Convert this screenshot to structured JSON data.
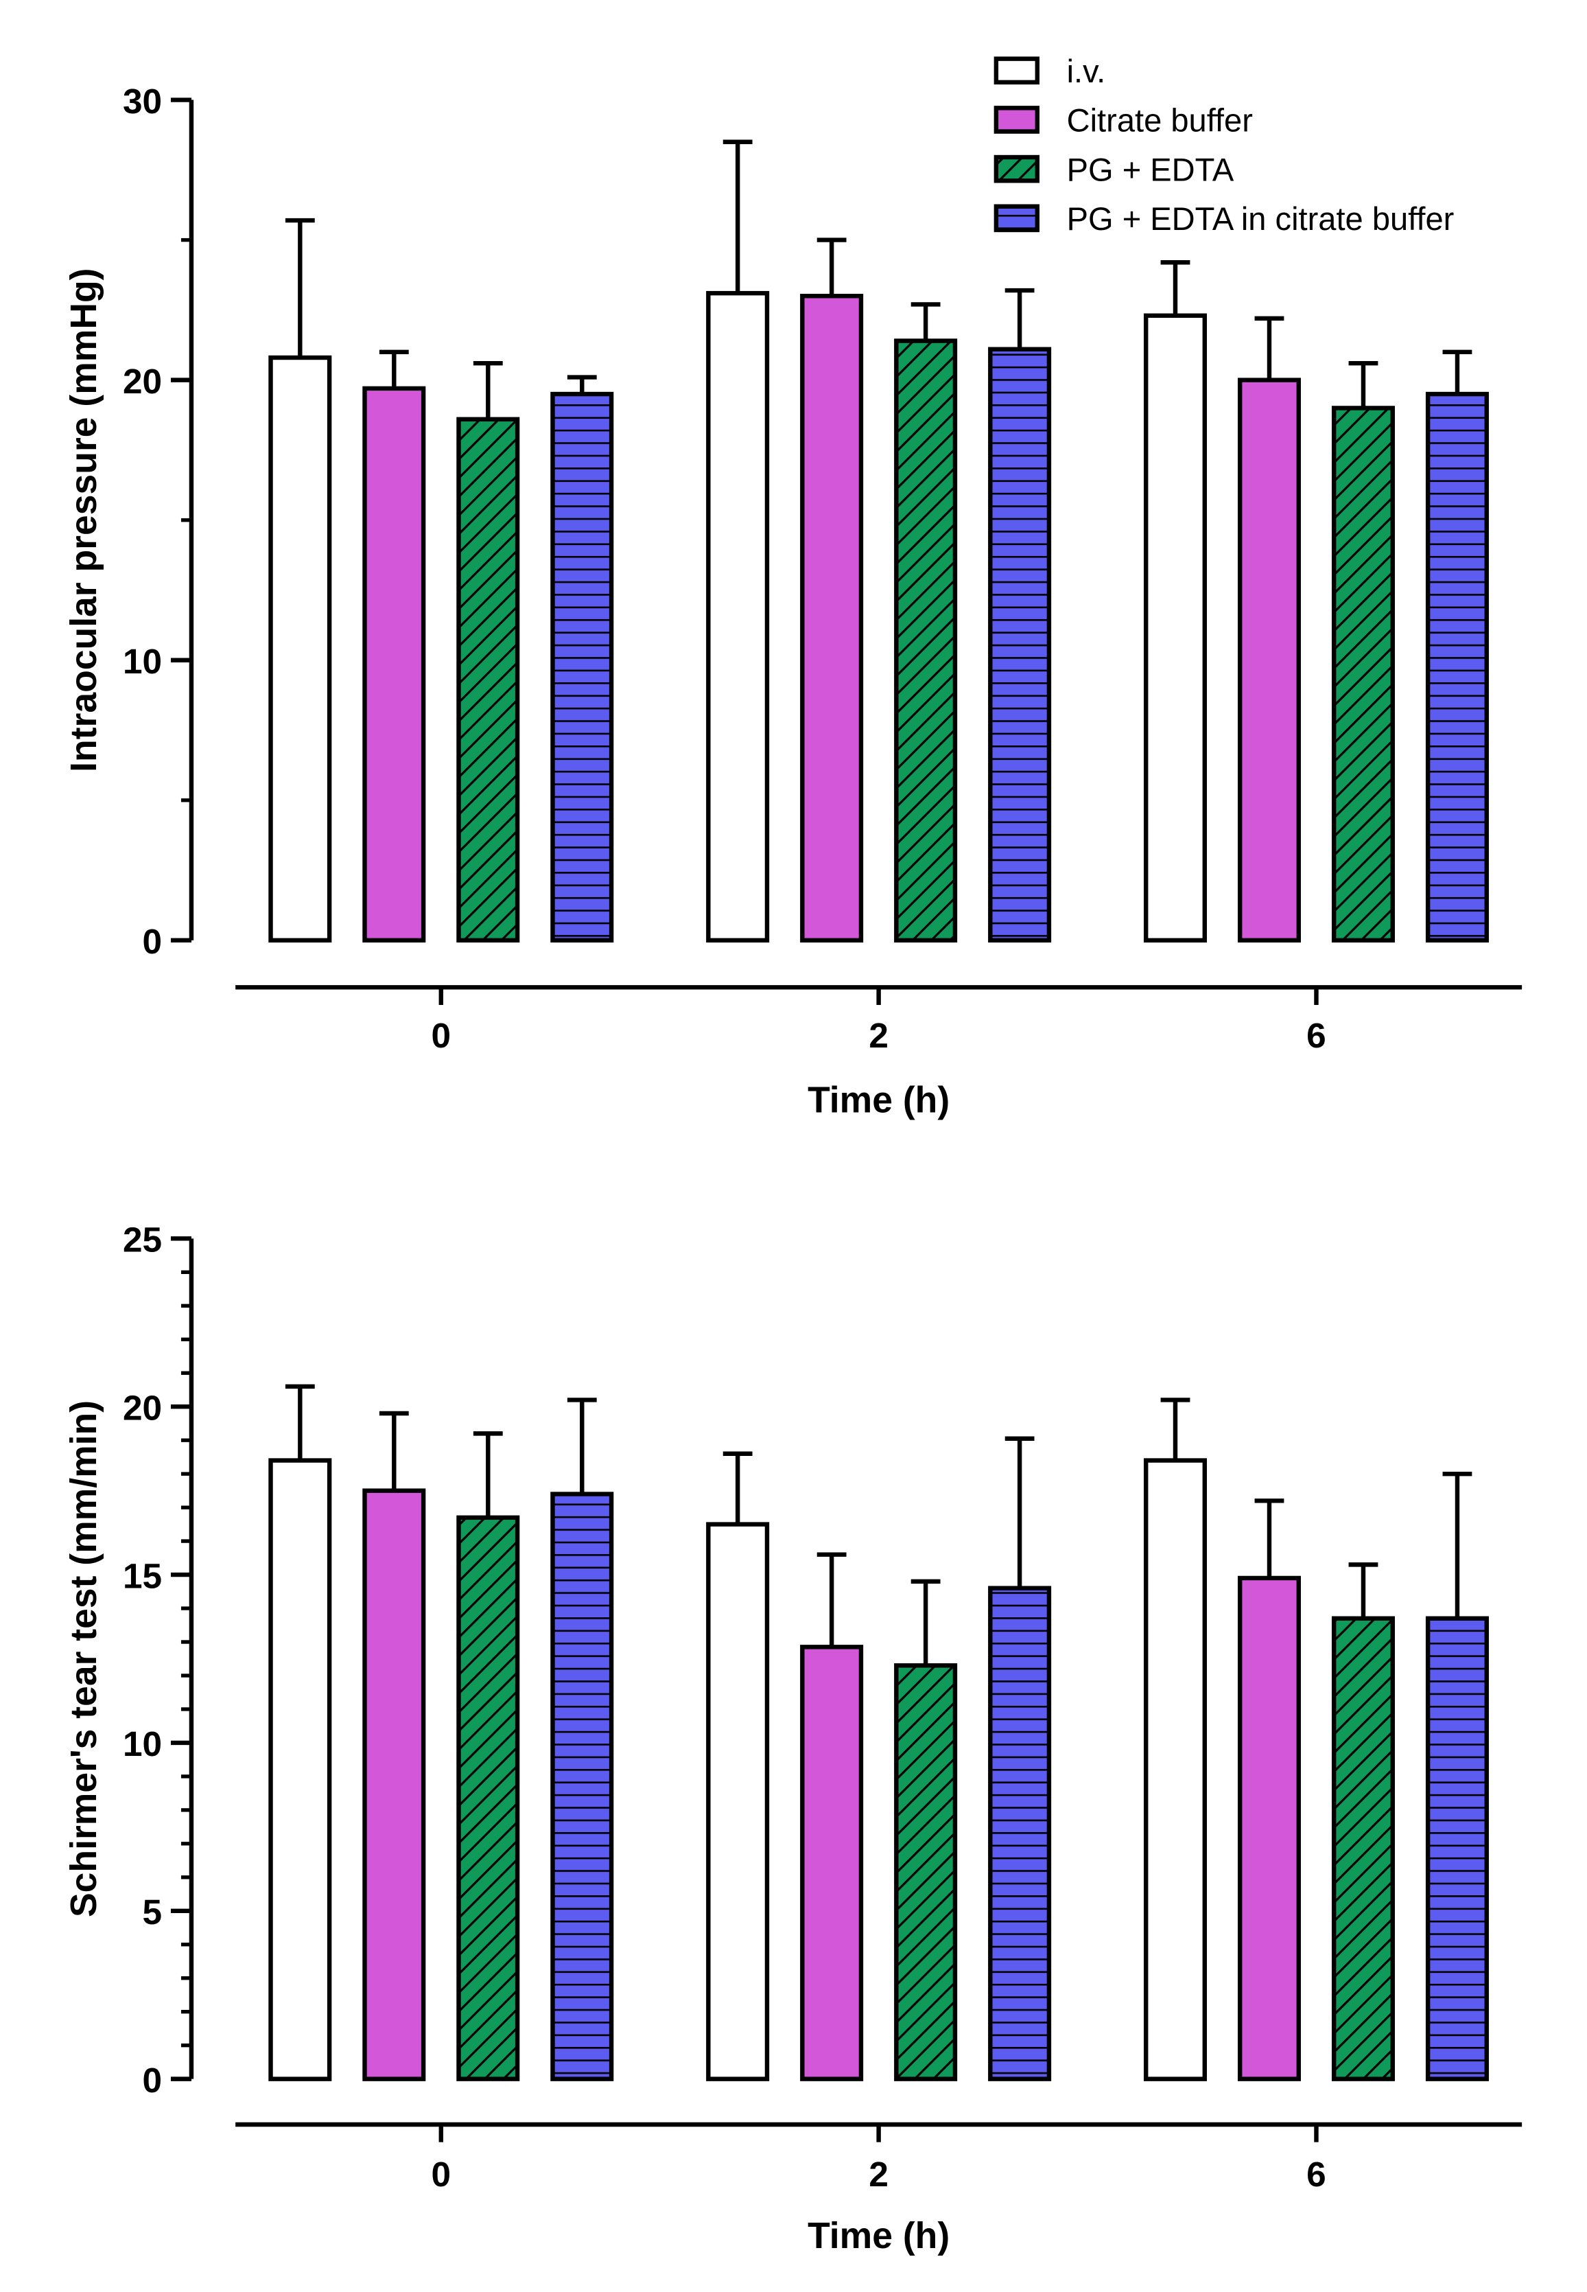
{
  "legend": [
    "i.v.",
    "Citrate buffer",
    "PG + EDTA",
    "PG + EDTA in citrate buffer"
  ],
  "colors": {
    "iv": "#ffffff",
    "citrate": "#d357d9",
    "pg": "#0f9a5a",
    "blue": "#5c5cf0",
    "stroke": "#000000"
  },
  "chart_data": [
    {
      "type": "bar",
      "title": "",
      "xlabel": "Time (h)",
      "ylabel": "Intraocular pressure (mmHg)",
      "categories": [
        "0",
        "2",
        "6"
      ],
      "ylim": [
        0,
        30
      ],
      "yticks": [
        0,
        10,
        20,
        30
      ],
      "ytick_labels": [
        "0",
        "10",
        "20",
        "30"
      ],
      "minor_step": 5,
      "series": [
        {
          "name": "i.v.",
          "values": [
            20.8,
            23.1,
            22.3
          ],
          "error": [
            4.9,
            5.4,
            1.9
          ]
        },
        {
          "name": "Citrate buffer",
          "values": [
            19.7,
            23.0,
            20.0
          ],
          "error": [
            1.3,
            2.0,
            2.2
          ]
        },
        {
          "name": "PG + EDTA",
          "values": [
            18.6,
            21.4,
            19.0
          ],
          "error": [
            2.0,
            1.3,
            1.6
          ]
        },
        {
          "name": "PG + EDTA in citrate buffer",
          "values": [
            19.5,
            21.1,
            19.5
          ],
          "error": [
            0.6,
            2.1,
            1.5
          ]
        }
      ]
    },
    {
      "type": "bar",
      "title": "",
      "xlabel": "Time (h)",
      "ylabel": "Schirmer's tear test (mm/min)",
      "categories": [
        "0",
        "2",
        "6"
      ],
      "ylim": [
        0,
        25
      ],
      "yticks": [
        0,
        5,
        10,
        15,
        20,
        25
      ],
      "ytick_labels": [
        "0",
        "5",
        "10",
        "15",
        "20",
        "25"
      ],
      "minor_step": 1,
      "series": [
        {
          "name": "i.v.",
          "values": [
            18.4,
            16.5,
            18.4
          ],
          "error": [
            2.2,
            2.1,
            1.8
          ]
        },
        {
          "name": "Citrate buffer",
          "values": [
            17.5,
            12.85,
            14.9
          ],
          "error": [
            2.3,
            2.75,
            2.3
          ]
        },
        {
          "name": "PG + EDTA",
          "values": [
            16.7,
            12.3,
            13.7
          ],
          "error": [
            2.5,
            2.5,
            1.6
          ]
        },
        {
          "name": "PG + EDTA in citrate buffer",
          "values": [
            17.4,
            14.6,
            13.7
          ],
          "error": [
            2.8,
            4.45,
            4.3
          ]
        }
      ]
    }
  ]
}
